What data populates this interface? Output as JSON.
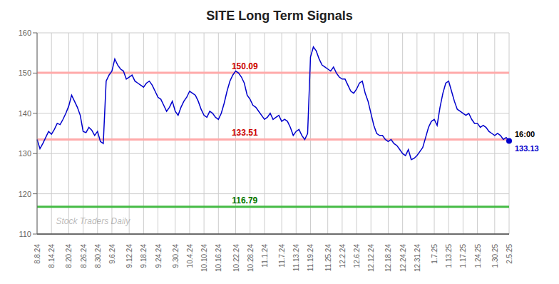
{
  "chart_data": {
    "type": "line",
    "title": "SITE Long Term Signals",
    "watermark": {
      "text": "Stock Traders Daily",
      "color": "gray"
    },
    "background_color": "#ffffff",
    "grid": true,
    "grid_color": "#cccccc",
    "color": "#0000cc",
    "ylim": [
      110,
      160
    ],
    "yticks": [
      110,
      120,
      130,
      140,
      150,
      160
    ],
    "hlines": [
      {
        "value": 150.09,
        "label": "150.09",
        "color": "#ffaaaa",
        "label_color": "#cc0000"
      },
      {
        "value": 133.51,
        "label": "133.51",
        "color": "#ffaaaa",
        "label_color": "#cc0000"
      },
      {
        "value": 116.79,
        "label": "116.79",
        "color": "#44bb44",
        "label_color": "#007700"
      }
    ],
    "baseline_color": "#000000",
    "end_marker": {
      "color": "#0000cc",
      "labels": [
        {
          "text": "16:00",
          "color": "#000000"
        },
        {
          "text": "133.13",
          "color": "#0000cc"
        }
      ]
    },
    "categories": [
      "8.8.24",
      null,
      null,
      null,
      null,
      "8.14.24",
      null,
      null,
      null,
      null,
      null,
      "8.20.24",
      null,
      null,
      null,
      null,
      "8.26.24",
      null,
      null,
      null,
      null,
      "8.30.24",
      null,
      null,
      null,
      null,
      "9.6.24",
      null,
      null,
      null,
      null,
      null,
      "9.12.24",
      null,
      null,
      null,
      null,
      "9.18.24",
      null,
      null,
      null,
      null,
      "9.24.24",
      null,
      null,
      null,
      null,
      null,
      "9.30.24",
      null,
      null,
      null,
      null,
      "10.4.24",
      null,
      null,
      null,
      null,
      "10.10.24",
      null,
      null,
      null,
      null,
      "10.16.24",
      null,
      null,
      null,
      null,
      null,
      "10.22.24",
      null,
      null,
      null,
      null,
      "10.28.24",
      null,
      null,
      null,
      null,
      "11.1.24",
      null,
      null,
      null,
      null,
      null,
      "11.7.24",
      null,
      null,
      null,
      null,
      "11.13.24",
      null,
      null,
      null,
      null,
      "11.19.24",
      null,
      null,
      null,
      null,
      null,
      "11.25.24",
      null,
      null,
      null,
      null,
      "12.2.24",
      null,
      null,
      null,
      null,
      "12.6.24",
      null,
      null,
      null,
      null,
      "12.12.24",
      null,
      null,
      null,
      null,
      null,
      "12.18.24",
      null,
      null,
      null,
      null,
      "12.24.24",
      null,
      null,
      null,
      null,
      "12.31.24",
      null,
      null,
      null,
      null,
      null,
      "1.7.25",
      null,
      null,
      null,
      null,
      "1.13.25",
      null,
      null,
      null,
      null,
      "1.17.25",
      null,
      null,
      null,
      null,
      "1.24.25",
      null,
      null,
      null,
      null,
      null,
      "1.30.25",
      null,
      null,
      null,
      null,
      "2.5.25"
    ],
    "values": [
      133.5,
      131.2,
      132.5,
      134.0,
      135.5,
      134.8,
      136.0,
      137.5,
      137.2,
      138.5,
      140.0,
      141.8,
      144.5,
      143.0,
      141.5,
      139.5,
      135.5,
      135.2,
      136.5,
      135.8,
      134.5,
      135.5,
      133.0,
      132.5,
      148.0,
      149.5,
      150.5,
      153.5,
      152.0,
      151.0,
      150.5,
      148.5,
      149.0,
      149.5,
      148.0,
      147.5,
      147.0,
      146.5,
      147.5,
      148.0,
      147.0,
      145.5,
      144.0,
      143.5,
      142.0,
      140.5,
      141.5,
      143.0,
      140.5,
      139.5,
      141.5,
      143.0,
      144.0,
      145.5,
      145.0,
      144.5,
      143.0,
      141.0,
      139.5,
      139.0,
      140.5,
      140.0,
      139.0,
      138.5,
      140.0,
      142.5,
      145.5,
      148.0,
      149.5,
      150.5,
      150.0,
      149.0,
      147.5,
      144.5,
      143.5,
      142.0,
      141.5,
      140.5,
      139.5,
      138.5,
      139.0,
      140.0,
      138.5,
      139.0,
      139.5,
      138.0,
      138.5,
      138.0,
      136.5,
      134.5,
      135.5,
      136.0,
      134.5,
      133.5,
      135.0,
      154.0,
      156.5,
      155.5,
      153.5,
      152.0,
      151.5,
      151.0,
      150.5,
      151.5,
      150.0,
      149.0,
      148.5,
      148.5,
      147.0,
      145.5,
      145.0,
      146.0,
      147.5,
      148.0,
      145.0,
      143.0,
      140.0,
      137.0,
      135.0,
      134.5,
      134.5,
      133.5,
      133.0,
      133.5,
      132.5,
      132.0,
      131.0,
      130.0,
      129.5,
      131.0,
      128.5,
      128.8,
      129.5,
      130.5,
      131.5,
      134.0,
      136.5,
      138.0,
      138.5,
      137.0,
      141.5,
      145.0,
      147.5,
      148.0,
      145.5,
      143.0,
      141.0,
      140.5,
      140.0,
      139.5,
      140.0,
      138.5,
      137.5,
      137.5,
      136.5,
      137.0,
      136.5,
      135.5,
      135.0,
      134.5,
      135.0,
      134.5,
      133.5,
      134.0,
      133.13
    ]
  }
}
